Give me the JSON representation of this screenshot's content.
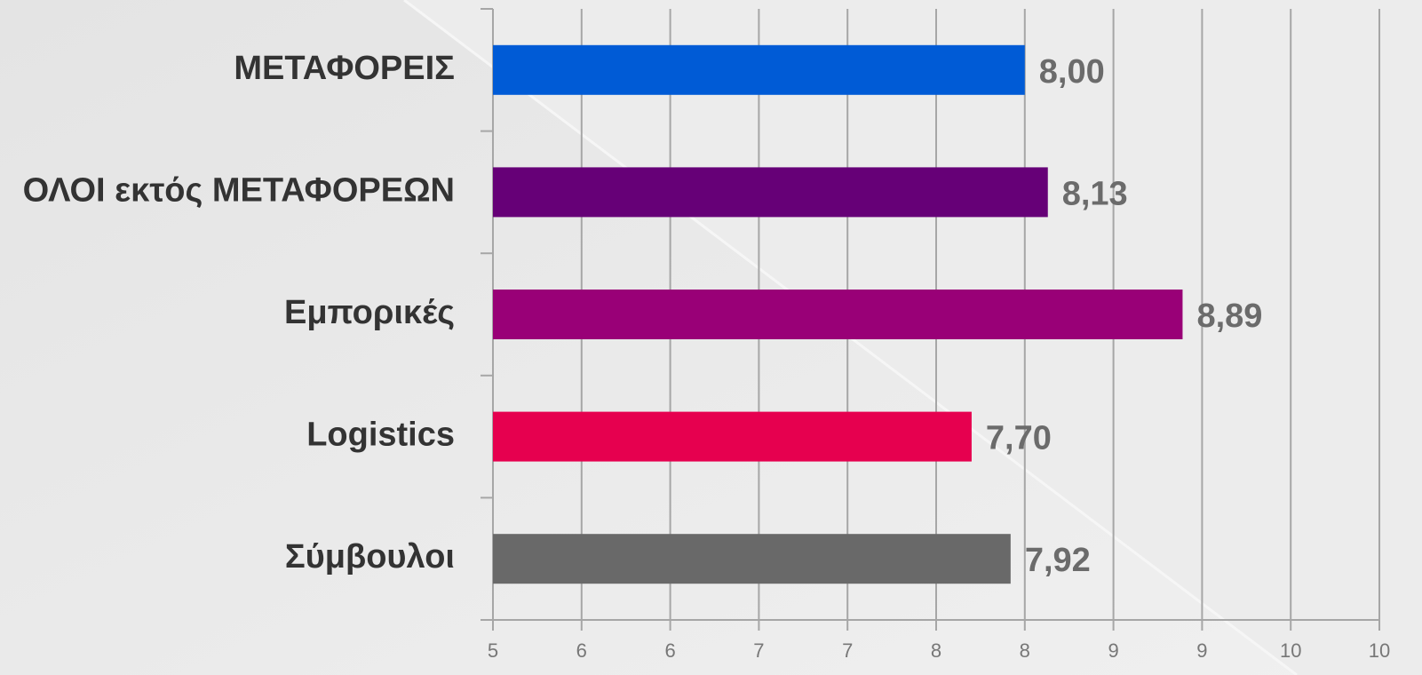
{
  "chart_data": {
    "type": "barh",
    "categories": [
      "ΜΕΤΑΦΟΡΕΙΣ",
      "ΟΛΟΙ εκτός ΜΕΤΑΦΟΡΕΩΝ",
      "Εμπορικές",
      "Logistics",
      "Σύμβουλοι"
    ],
    "values": [
      8.0,
      8.13,
      8.89,
      7.7,
      7.92
    ],
    "value_labels": [
      "8,00",
      "8,13",
      "8,89",
      "7,70",
      "7,92"
    ],
    "colors": [
      "#005bd6",
      "#660077",
      "#990077",
      "#e6004f",
      "#696969"
    ],
    "xlim": [
      5,
      10
    ],
    "xticks": [
      5,
      {
        "value": 5.5,
        "label": "6"
      },
      6,
      {
        "value": 6.5,
        "label": "7"
      },
      7,
      {
        "value": 7.5,
        "label": "8"
      },
      8,
      {
        "value": 8.5,
        "label": "9"
      },
      9,
      {
        "value": 9.5,
        "label": "10"
      },
      10
    ],
    "grid": true
  }
}
